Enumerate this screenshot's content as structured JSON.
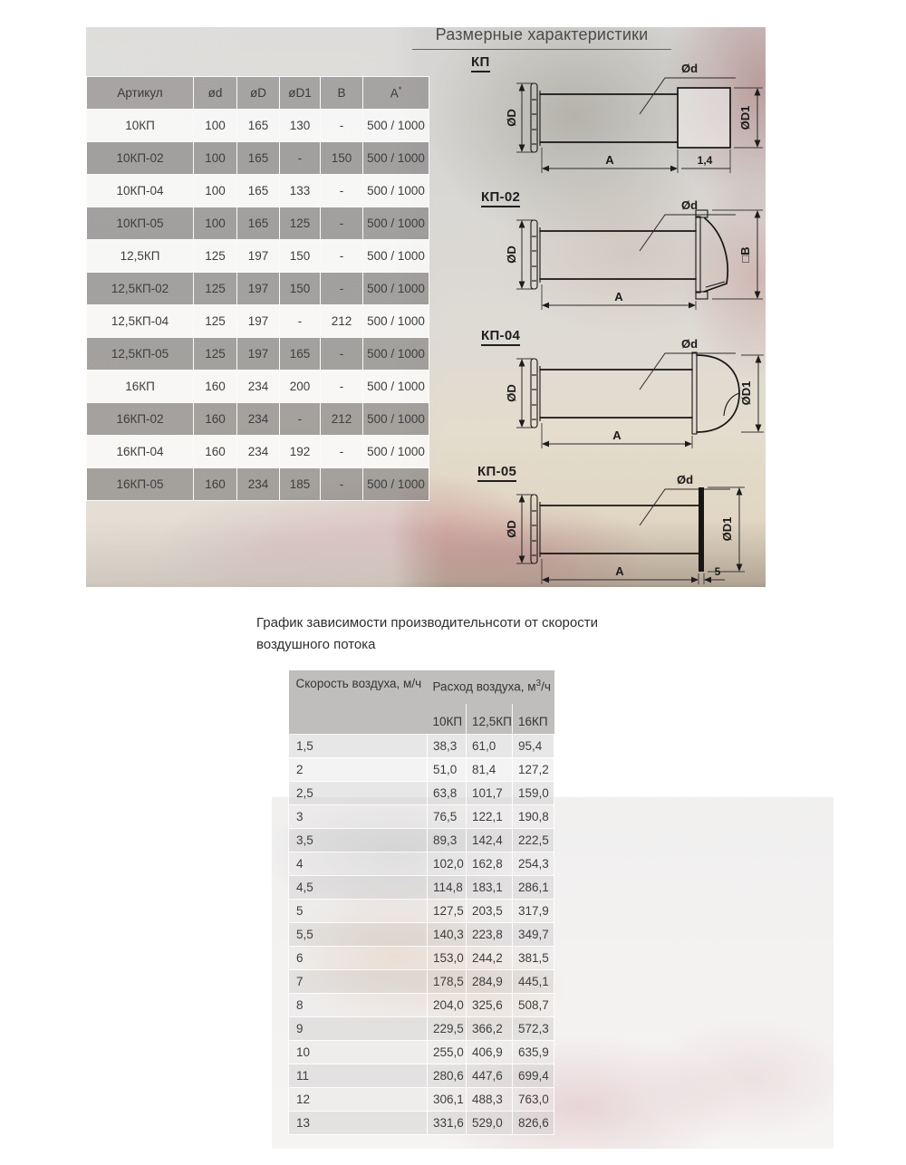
{
  "colors": {
    "header_gray": "#a8a6a5",
    "row_dark": "#9e9c9b",
    "row_light": "#f1efee",
    "line": "#1c1c1c"
  },
  "section1": {
    "title": "Размерные характеристики",
    "dim_table": {
      "headers": [
        "Артикул",
        "ød",
        "øD",
        "øD1",
        "B",
        "A*"
      ],
      "rows": [
        [
          "10КП",
          "100",
          "165",
          "130",
          "-",
          "500 / 1000"
        ],
        [
          "10КП-02",
          "100",
          "165",
          "-",
          "150",
          "500 / 1000"
        ],
        [
          "10КП-04",
          "100",
          "165",
          "133",
          "-",
          "500 / 1000"
        ],
        [
          "10КП-05",
          "100",
          "165",
          "125",
          "-",
          "500 / 1000"
        ],
        [
          "12,5КП",
          "125",
          "197",
          "150",
          "-",
          "500 / 1000"
        ],
        [
          "12,5КП-02",
          "125",
          "197",
          "150",
          "-",
          "500 / 1000"
        ],
        [
          "12,5КП-04",
          "125",
          "197",
          "-",
          "212",
          "500 / 1000"
        ],
        [
          "12,5КП-05",
          "125",
          "197",
          "165",
          "-",
          "500 / 1000"
        ],
        [
          "16КП",
          "160",
          "234",
          "200",
          "-",
          "500 / 1000"
        ],
        [
          "16КП-02",
          "160",
          "234",
          "-",
          "212",
          "500 / 1000"
        ],
        [
          "16КП-04",
          "160",
          "234",
          "192",
          "-",
          "500 / 1000"
        ],
        [
          "16КП-05",
          "160",
          "234",
          "185",
          "-",
          "500 / 1000"
        ]
      ]
    },
    "drawings": [
      {
        "label": "КП",
        "dims": {
          "left": "ØD",
          "pipe": "Ød",
          "right": "ØD1",
          "bottom": "A",
          "extra": "1,4"
        }
      },
      {
        "label": "КП-02",
        "dims": {
          "left": "ØD",
          "pipe": "Ød",
          "right": "□B",
          "bottom": "A",
          "extra": ""
        }
      },
      {
        "label": "КП-04",
        "dims": {
          "left": "ØD",
          "pipe": "Ød",
          "right": "ØD1",
          "bottom": "A",
          "extra": ""
        }
      },
      {
        "label": "КП-05",
        "dims": {
          "left": "ØD",
          "pipe": "Ød",
          "right": "ØD1",
          "bottom": "A",
          "extra": "5"
        }
      }
    ]
  },
  "section2": {
    "title_line1": "График зависимости производительнсоти от скорости",
    "title_line2": "воздушного потока",
    "flow_table": {
      "col1_header": "Скорость воздуха, м/ч",
      "group_header": "Расход воздуха, м",
      "group_header_sup": "3",
      "group_header_suffix": "/ч",
      "model_headers": [
        "10КП",
        "12,5КП",
        "16КП"
      ],
      "rows": [
        [
          "1,5",
          "38,3",
          "61,0",
          "95,4"
        ],
        [
          "2",
          "51,0",
          "81,4",
          "127,2"
        ],
        [
          "2,5",
          "63,8",
          "101,7",
          "159,0"
        ],
        [
          "3",
          "76,5",
          "122,1",
          "190,8"
        ],
        [
          "3,5",
          "89,3",
          "142,4",
          "222,5"
        ],
        [
          "4",
          "102,0",
          "162,8",
          "254,3"
        ],
        [
          "4,5",
          "114,8",
          "183,1",
          "286,1"
        ],
        [
          "5",
          "127,5",
          "203,5",
          "317,9"
        ],
        [
          "5,5",
          "140,3",
          "223,8",
          "349,7"
        ],
        [
          "6",
          "153,0",
          "244,2",
          "381,5"
        ],
        [
          "7",
          "178,5",
          "284,9",
          "445,1"
        ],
        [
          "8",
          "204,0",
          "325,6",
          "508,7"
        ],
        [
          "9",
          "229,5",
          "366,2",
          "572,3"
        ],
        [
          "10",
          "255,0",
          "406,9",
          "635,9"
        ],
        [
          "11",
          "280,6",
          "447,6",
          "699,4"
        ],
        [
          "12",
          "306,1",
          "488,3",
          "763,0"
        ],
        [
          "13",
          "331,6",
          "529,0",
          "826,6"
        ]
      ]
    }
  }
}
